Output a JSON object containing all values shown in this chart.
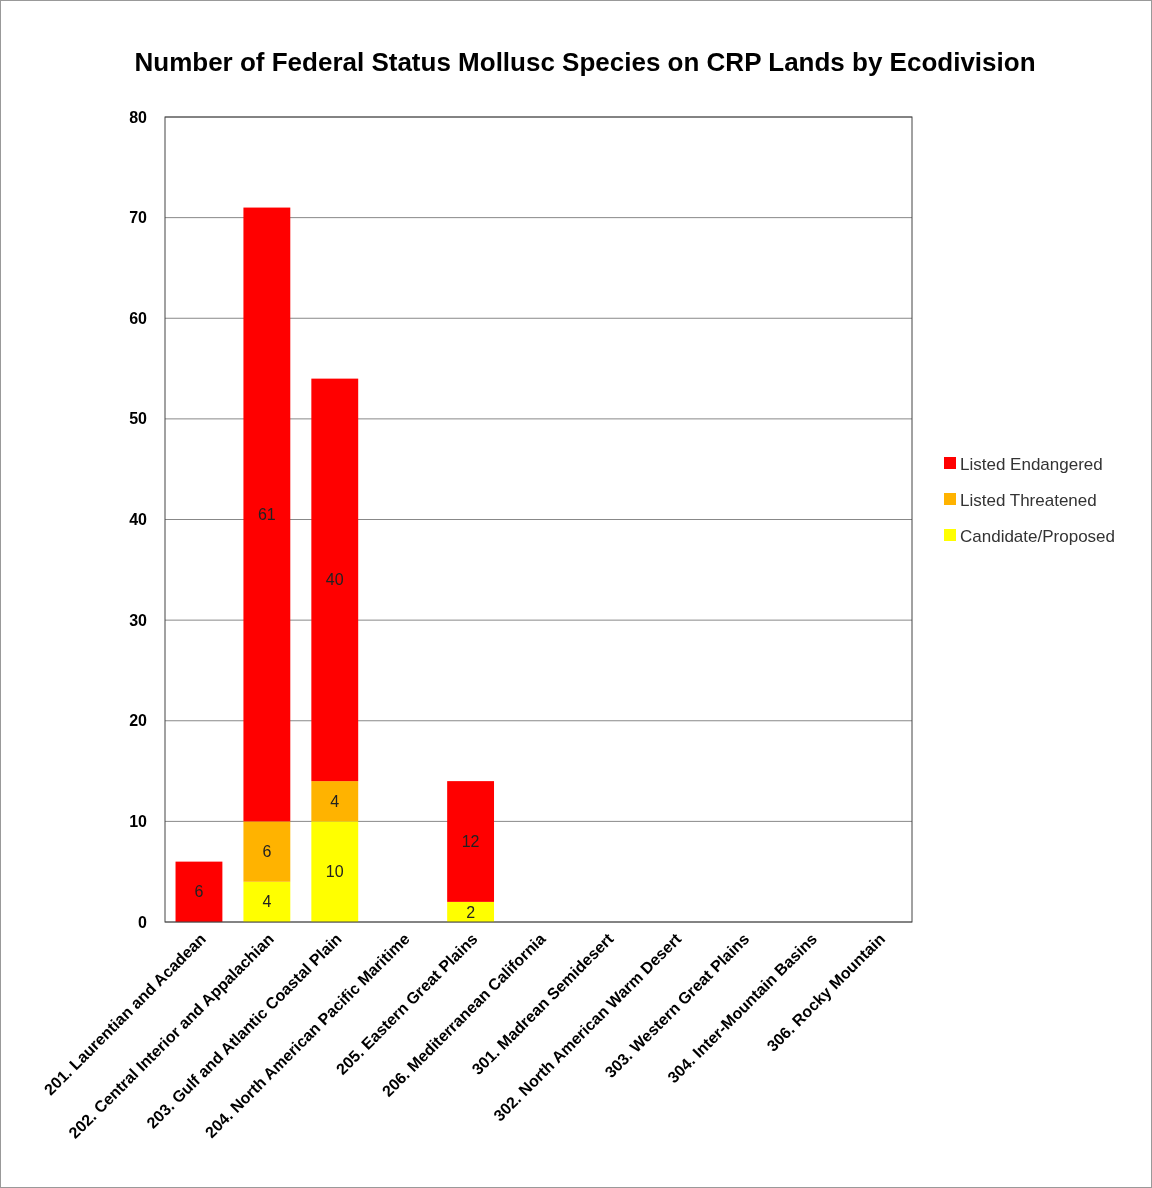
{
  "chart_data": {
    "type": "bar",
    "title": "Number of Federal Status Mollusc Species on CRP Lands by Ecodivision",
    "categories": [
      "201. Laurentian and Acadean",
      "202. Central Interior and Appalachian",
      "203. Gulf and Atlantic Coastal Plain",
      "204. North American Pacific Maritime",
      "205. Eastern Great Plains",
      "206. Mediterranean California",
      "301. Madrean Semidesert",
      "302. North American Warm Desert",
      "303. Western Great Plains",
      "304. Inter-Mountain Basins",
      "306. Rocky Mountain"
    ],
    "series": [
      {
        "name": "Candidate/Proposed",
        "color": "#ffff00",
        "values": [
          null,
          4,
          10,
          null,
          2,
          null,
          null,
          null,
          null,
          null,
          null
        ]
      },
      {
        "name": "Listed Threatened",
        "color": "#ffb300",
        "values": [
          null,
          6,
          4,
          null,
          null,
          null,
          null,
          null,
          null,
          null,
          null
        ]
      },
      {
        "name": "Listed Endangered",
        "color": "#ff0000",
        "values": [
          6,
          61,
          40,
          null,
          12,
          null,
          null,
          null,
          null,
          null,
          null
        ]
      }
    ],
    "stacked": true,
    "ylim": [
      0,
      80
    ],
    "yticks": [
      0,
      10,
      20,
      30,
      40,
      50,
      60,
      70,
      80
    ],
    "grid": "y",
    "legend": "right",
    "data_labels": true
  }
}
